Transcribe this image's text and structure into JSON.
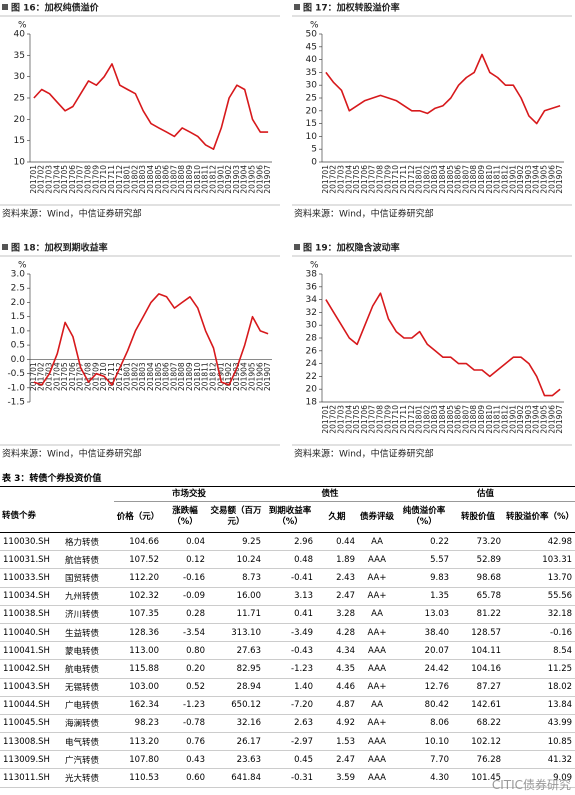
{
  "chart_data": [
    {
      "type": "line",
      "title": "图 16：加权纯债溢价",
      "y_unit": "%",
      "source": "资料来源：Wind，中信证券研究部",
      "color": "#d7191c",
      "x": [
        "201701",
        "201702",
        "201703",
        "201704",
        "201705",
        "201706",
        "201707",
        "201708",
        "201709",
        "201710",
        "201711",
        "201712",
        "201801",
        "201802",
        "201803",
        "201804",
        "201805",
        "201806",
        "201807",
        "201808",
        "201809",
        "201810",
        "201811",
        "201812",
        "201901",
        "201902",
        "201903",
        "201904",
        "201905",
        "201906",
        "201907"
      ],
      "values": [
        25,
        27,
        26,
        24,
        22,
        23,
        26,
        29,
        28,
        30,
        33,
        28,
        27,
        26,
        22,
        19,
        18,
        17,
        16,
        18,
        17,
        16,
        14,
        13,
        18,
        25,
        28,
        27,
        20,
        17,
        17
      ],
      "ylim": [
        10,
        40
      ],
      "yticks": [
        10,
        15,
        20,
        25,
        30,
        35,
        40
      ]
    },
    {
      "type": "line",
      "title": "图 17：加权转股溢价率",
      "y_unit": "%",
      "source": "资料来源：Wind，中信证券研究部",
      "color": "#d7191c",
      "x": [
        "201701",
        "201702",
        "201703",
        "201704",
        "201705",
        "201706",
        "201707",
        "201708",
        "201709",
        "201710",
        "201711",
        "201712",
        "201801",
        "201802",
        "201803",
        "201804",
        "201805",
        "201806",
        "201807",
        "201808",
        "201809",
        "201810",
        "201811",
        "201812",
        "201901",
        "201902",
        "201903",
        "201904",
        "201905",
        "201906",
        "201907"
      ],
      "values": [
        35,
        31,
        28,
        20,
        22,
        24,
        25,
        26,
        25,
        24,
        22,
        20,
        20,
        19,
        21,
        22,
        25,
        30,
        33,
        35,
        42,
        35,
        33,
        30,
        30,
        25,
        18,
        15,
        20,
        21,
        22
      ],
      "ylim": [
        0,
        50
      ],
      "yticks": [
        0,
        5,
        10,
        15,
        20,
        25,
        30,
        35,
        40,
        45,
        50
      ]
    },
    {
      "type": "line",
      "title": "图 18：加权到期收益率",
      "y_unit": "%",
      "source": "资料来源：Wind，中信证券研究部",
      "color": "#d7191c",
      "x": [
        "201701",
        "201702",
        "201703",
        "201704",
        "201705",
        "201706",
        "201707",
        "201708",
        "201709",
        "201710",
        "201711",
        "201712",
        "201801",
        "201802",
        "201803",
        "201804",
        "201805",
        "201806",
        "201807",
        "201808",
        "201809",
        "201810",
        "201811",
        "201812",
        "201901",
        "201902",
        "201903",
        "201904",
        "201905",
        "201906",
        "201907"
      ],
      "values": [
        -0.8,
        -0.9,
        -0.5,
        0.2,
        1.3,
        0.8,
        -0.3,
        -0.8,
        -0.5,
        -0.6,
        -0.9,
        -0.3,
        0.3,
        1.0,
        1.5,
        2.0,
        2.3,
        2.2,
        1.8,
        2.0,
        2.2,
        1.8,
        1.0,
        0.4,
        -0.8,
        -0.9,
        -0.3,
        0.5,
        1.5,
        1.0,
        0.9
      ],
      "ylim": [
        -1.5,
        3.0
      ],
      "yticks": [
        -1.5,
        {
          "value": -1,
          "label": "-1.0"
        },
        -0.5,
        {
          "value": 0,
          "label": "0.0"
        },
        0.5,
        {
          "value": 1,
          "label": "1.0"
        },
        1.5,
        {
          "value": 2,
          "label": "2.0"
        },
        2.5,
        {
          "value": 3,
          "label": "3.0"
        }
      ]
    },
    {
      "type": "line",
      "title": "图 19：加权隐含波动率",
      "y_unit": "%",
      "source": "资料来源：Wind，中信证券研究部",
      "color": "#d7191c",
      "x": [
        "201701",
        "201702",
        "201703",
        "201704",
        "201705",
        "201706",
        "201707",
        "201708",
        "201709",
        "201710",
        "201711",
        "201712",
        "201801",
        "201802",
        "201803",
        "201804",
        "201805",
        "201806",
        "201807",
        "201808",
        "201809",
        "201810",
        "201811",
        "201812",
        "201901",
        "201902",
        "201903",
        "201904",
        "201905",
        "201906",
        "201907"
      ],
      "values": [
        34,
        32,
        30,
        28,
        27,
        30,
        33,
        35,
        31,
        29,
        28,
        28,
        29,
        27,
        26,
        25,
        25,
        24,
        24,
        23,
        23,
        22,
        23,
        24,
        25,
        25,
        24,
        22,
        19,
        19,
        20
      ],
      "ylim": [
        18,
        38
      ],
      "yticks": [
        18,
        20,
        22,
        24,
        26,
        28,
        30,
        32,
        34,
        36,
        38
      ]
    }
  ],
  "table": {
    "title": "表 3：转债个券投资价值",
    "group_headers": [
      "市场交投",
      "债性",
      "估值"
    ],
    "columns": [
      "转债个券",
      "价格（元）",
      "涨跌幅（%）",
      "交易额（百万元）",
      "到期收益率（%）",
      "久期",
      "债券评级",
      "纯债溢价率（%）",
      "转股价值",
      "转股溢价率（%）"
    ],
    "rows": [
      [
        "110030.SH",
        "格力转债",
        "104.66",
        "0.04",
        "9.25",
        "2.96",
        "0.44",
        "AA",
        "0.22",
        "73.20",
        "42.98"
      ],
      [
        "110031.SH",
        "航信转债",
        "107.52",
        "0.12",
        "10.24",
        "0.48",
        "1.89",
        "AAA",
        "5.57",
        "52.89",
        "103.31"
      ],
      [
        "110033.SH",
        "国贸转债",
        "112.20",
        "-0.16",
        "8.73",
        "-0.41",
        "2.43",
        "AA+",
        "9.83",
        "98.68",
        "13.70"
      ],
      [
        "110034.SH",
        "九州转债",
        "102.32",
        "-0.09",
        "16.00",
        "3.13",
        "2.47",
        "AA+",
        "1.35",
        "65.78",
        "55.56"
      ],
      [
        "110038.SH",
        "济川转债",
        "107.35",
        "0.28",
        "11.71",
        "0.41",
        "3.28",
        "AA",
        "13.03",
        "81.22",
        "32.18"
      ],
      [
        "110040.SH",
        "生益转债",
        "128.36",
        "-3.54",
        "313.10",
        "-3.49",
        "4.28",
        "AA+",
        "38.40",
        "128.57",
        "-0.16"
      ],
      [
        "110041.SH",
        "蒙电转债",
        "113.00",
        "0.80",
        "27.63",
        "-0.43",
        "4.34",
        "AAA",
        "20.07",
        "104.11",
        "8.54"
      ],
      [
        "110042.SH",
        "航电转债",
        "115.88",
        "0.20",
        "82.95",
        "-1.23",
        "4.35",
        "AAA",
        "24.42",
        "104.16",
        "11.25"
      ],
      [
        "110043.SH",
        "无锡转债",
        "103.00",
        "0.52",
        "28.94",
        "1.40",
        "4.46",
        "AA+",
        "12.76",
        "87.27",
        "18.02"
      ],
      [
        "110044.SH",
        "广电转债",
        "162.34",
        "-1.23",
        "650.12",
        "-7.20",
        "4.87",
        "AA",
        "80.42",
        "142.61",
        "13.84"
      ],
      [
        "110045.SH",
        "海澜转债",
        "98.23",
        "-0.78",
        "32.16",
        "2.63",
        "4.92",
        "AA+",
        "8.06",
        "68.22",
        "43.99"
      ],
      [
        "113008.SH",
        "电气转债",
        "113.20",
        "0.76",
        "26.17",
        "-2.97",
        "1.53",
        "AAA",
        "10.10",
        "102.12",
        "10.85"
      ],
      [
        "113009.SH",
        "广汽转债",
        "107.80",
        "0.43",
        "23.63",
        "0.45",
        "2.47",
        "AAA",
        "7.70",
        "76.28",
        "41.32"
      ],
      [
        "113011.SH",
        "光大转债",
        "110.53",
        "0.60",
        "641.84",
        "-0.31",
        "3.59",
        "AAA",
        "4.30",
        "101.45",
        "9.09"
      ]
    ]
  },
  "watermark": "CITIC债券研究"
}
